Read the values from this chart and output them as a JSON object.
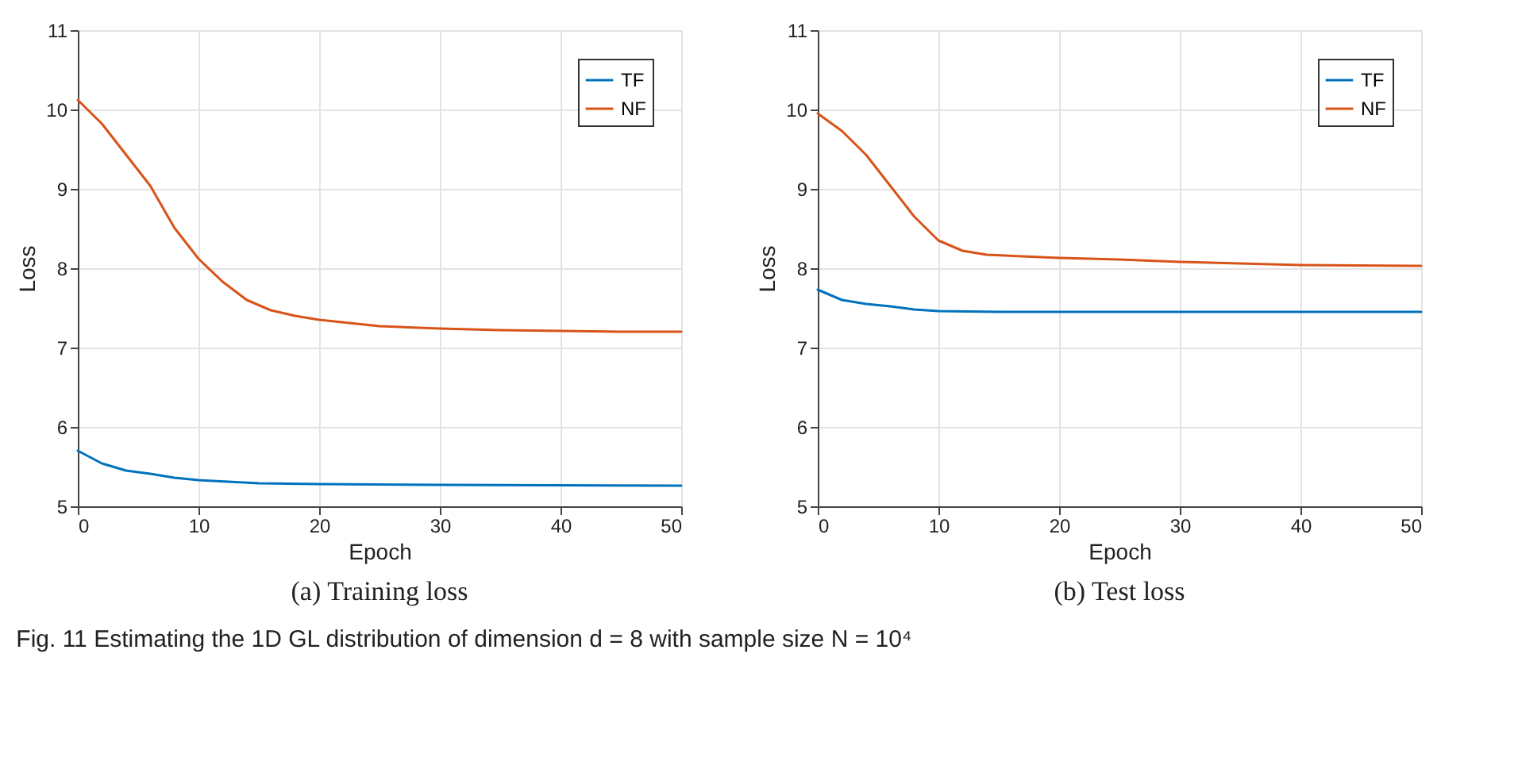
{
  "chart_data": [
    {
      "type": "line",
      "title": "(a) Training loss",
      "xlabel": "Epoch",
      "ylabel": "Loss",
      "xlim": [
        0,
        50
      ],
      "xticks": [
        0,
        10,
        20,
        30,
        40,
        50
      ],
      "ylim": [
        5,
        11
      ],
      "yticks": [
        5,
        6,
        7,
        8,
        9,
        10,
        11
      ],
      "grid": true,
      "legend": "top right",
      "annotations": [
        "Fig. 11   Estimating the 1D GL distribution of dimension d = 8 with sample size N = 10⁴"
      ],
      "series": [
        {
          "name": "TF",
          "color": "#0072bd",
          "x": [
            0,
            2,
            4,
            6,
            8,
            10,
            15,
            20,
            30,
            50
          ],
          "values": [
            5.7,
            5.54,
            5.45,
            5.41,
            5.36,
            5.33,
            5.29,
            5.28,
            5.27,
            5.26
          ]
        },
        {
          "name": "NF",
          "color": "#d95319",
          "x": [
            0,
            2,
            4,
            6,
            8,
            10,
            12,
            14,
            16,
            18,
            20,
            25,
            30,
            35,
            40,
            45,
            50
          ],
          "values": [
            10.12,
            9.82,
            9.43,
            9.04,
            8.51,
            8.12,
            7.83,
            7.6,
            7.47,
            7.4,
            7.35,
            7.27,
            7.24,
            7.22,
            7.21,
            7.2,
            7.2
          ]
        }
      ]
    },
    {
      "type": "line",
      "title": "(b) Test loss",
      "xlabel": "Epoch",
      "ylabel": "Loss",
      "xlim": [
        0,
        50
      ],
      "xticks": [
        0,
        10,
        20,
        30,
        40,
        50
      ],
      "ylim": [
        5,
        11
      ],
      "yticks": [
        5,
        6,
        7,
        8,
        9,
        10,
        11
      ],
      "grid": true,
      "legend": "top right",
      "series": [
        {
          "name": "TF",
          "color": "#0072bd",
          "x": [
            0,
            2,
            4,
            6,
            8,
            10,
            15,
            50
          ],
          "values": [
            7.73,
            7.6,
            7.55,
            7.52,
            7.48,
            7.46,
            7.45,
            7.45
          ]
        },
        {
          "name": "NF",
          "color": "#d95319",
          "x": [
            0,
            2,
            4,
            6,
            8,
            10,
            12,
            14,
            20,
            25,
            30,
            35,
            40,
            50
          ],
          "values": [
            9.95,
            9.73,
            9.43,
            9.04,
            8.65,
            8.35,
            8.22,
            8.17,
            8.13,
            8.11,
            8.08,
            8.06,
            8.04,
            8.03
          ]
        }
      ]
    }
  ]
}
